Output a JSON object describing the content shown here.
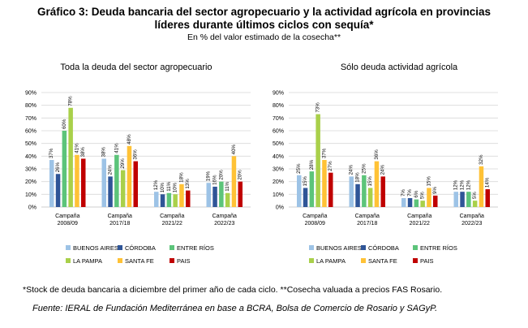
{
  "title_line1": "Gráfico 3: Deuda bancaria del sector agropecuario y la actividad agrícola en provincias",
  "title_line2": "líderes durante últimos ciclos con sequía*",
  "subtitle": "En % del valor estimado de la cosecha**",
  "footnote": "*Stock de deuda bancaria a diciembre del primer año de cada ciclo. **Cosecha valuada a precios FAS Rosario.",
  "source": "Fuente: IERAL de Fundación Mediterránea en base a BCRA, Bolsa de Comercio de Rosario y SAGyP.",
  "chart_data": [
    {
      "type": "bar",
      "title": "Toda la deuda del sector agropecuario",
      "categories": [
        [
          "Campaña",
          "2008/09"
        ],
        [
          "Campaña",
          "2017/18"
        ],
        [
          "Campaña",
          "2021/22"
        ],
        [
          "Campaña",
          "2022/23"
        ]
      ],
      "y_ticks": [
        "0%",
        "10%",
        "20%",
        "30%",
        "40%",
        "50%",
        "60%",
        "70%",
        "80%",
        "90%"
      ],
      "ylim": [
        0,
        90
      ],
      "series": [
        {
          "name": "BUENOS AIRES",
          "color": "#9dc3e6",
          "values": [
            37,
            38,
            12,
            19
          ],
          "labels": [
            "37%",
            "38%",
            "12%",
            "19%"
          ]
        },
        {
          "name": "CÓRDOBA",
          "color": "#2f5597",
          "values": [
            26,
            24,
            10,
            16
          ],
          "labels": [
            "26%",
            "24%",
            "10%",
            "16%"
          ]
        },
        {
          "name": "ENTRE RÍOS",
          "color": "#5cc47a",
          "values": [
            60,
            41,
            11,
            20
          ],
          "labels": [
            "60%",
            "41%",
            "11%",
            "20%"
          ]
        },
        {
          "name": "LA PAMPA",
          "color": "#a9d04a",
          "values": [
            78,
            29,
            10,
            11
          ],
          "labels": [
            "78%",
            "29%",
            "10%",
            "11%"
          ]
        },
        {
          "name": "SANTA FE",
          "color": "#ffc236",
          "values": [
            41,
            48,
            18,
            40
          ],
          "labels": [
            "41%",
            "48%",
            "18%",
            "40%"
          ]
        },
        {
          "name": "PAIS",
          "color": "#c00000",
          "values": [
            38,
            36,
            13,
            20
          ],
          "labels": [
            "38%",
            "36%",
            "13%",
            "20%"
          ]
        }
      ]
    },
    {
      "type": "bar",
      "title": "Sólo deuda actividad agrícola",
      "categories": [
        [
          "Campaña",
          "2008/09"
        ],
        [
          "Campaña",
          "2017/18"
        ],
        [
          "Campaña",
          "2021/22"
        ],
        [
          "Campaña",
          "2022/23"
        ]
      ],
      "y_ticks": [
        "0%",
        "10%",
        "20%",
        "30%",
        "40%",
        "50%",
        "60%",
        "70%",
        "80%",
        "90%"
      ],
      "ylim": [
        0,
        90
      ],
      "series": [
        {
          "name": "BUENOS AIRES",
          "color": "#9dc3e6",
          "values": [
            25,
            24,
            7,
            12
          ],
          "labels": [
            "25%",
            "24%",
            "7%",
            "12%"
          ]
        },
        {
          "name": "CÓRDOBA",
          "color": "#2f5597",
          "values": [
            15,
            18,
            7,
            12
          ],
          "labels": [
            "15%",
            "18%",
            "7%",
            "12%"
          ]
        },
        {
          "name": "ENTRE RÍOS",
          "color": "#5cc47a",
          "values": [
            28,
            25,
            6,
            12
          ],
          "labels": [
            "28%",
            "25%",
            "6%",
            "12%"
          ]
        },
        {
          "name": "LA PAMPA",
          "color": "#a9d04a",
          "values": [
            73,
            15,
            5,
            5
          ],
          "labels": [
            "73%",
            "15%",
            "5%",
            "5%"
          ]
        },
        {
          "name": "SANTA FE",
          "color": "#ffc236",
          "values": [
            37,
            36,
            15,
            32
          ],
          "labels": [
            "37%",
            "36%",
            "15%",
            "32%"
          ]
        },
        {
          "name": "PAIS",
          "color": "#c00000",
          "values": [
            27,
            24,
            9,
            14
          ],
          "labels": [
            "27%",
            "24%",
            "9%",
            "14%"
          ]
        }
      ]
    }
  ]
}
